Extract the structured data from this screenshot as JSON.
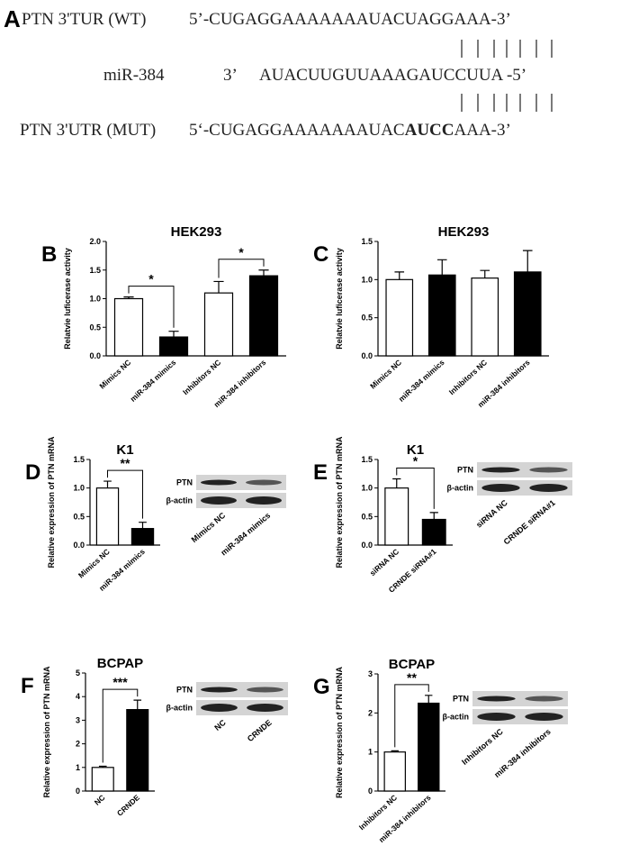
{
  "sequence_panel": {
    "label": "A",
    "wt": {
      "name": "PTN 3'TUR (WT)",
      "sequence": "5’-CUGAGGAAAAAAAUACUAGGAAA-3’"
    },
    "mirna": {
      "name": "miR-384",
      "end": "3’",
      "sequence": "AUACUUGUUAAAGAUCCUUA -5’"
    },
    "mut": {
      "name": "PTN 3'UTR (MUT)",
      "sequence_parts": [
        "5‘-CUGAGGAAAAAAAUAC",
        "AUCC",
        "AAA-3’"
      ]
    }
  },
  "chart_data": [
    {
      "type": "bar",
      "panel": "B",
      "title": "HEK293",
      "y_label": "Relatvie luficerase activity",
      "categories": [
        "Mimics NC",
        "miR-384 mimics",
        "Inhibitors NC",
        "miR-384 inhibitors"
      ],
      "values": [
        1.0,
        0.33,
        1.1,
        1.4
      ],
      "errors": [
        0.03,
        0.1,
        0.2,
        0.1
      ],
      "colors": [
        "#ffffff",
        "#000000",
        "#ffffff",
        "#000000"
      ],
      "ylim": [
        0,
        2
      ],
      "yticks": [
        {
          "value": 0,
          "label": "0.0"
        },
        {
          "value": 0.5,
          "label": "0.5"
        },
        {
          "value": 1,
          "label": "1.0"
        },
        {
          "value": 1.5,
          "label": "1.5"
        },
        {
          "value": 2,
          "label": "2.0"
        }
      ],
      "annotations": [
        {
          "text": "*",
          "between": [
            0,
            1
          ]
        },
        {
          "text": "*",
          "between": [
            2,
            3
          ]
        }
      ]
    },
    {
      "type": "bar",
      "panel": "C",
      "title": "HEK293",
      "y_label": "Relatvie luficerase activity",
      "categories": [
        "Mimics NC",
        "miR-384 mimics",
        "Inhibitors NC",
        "miR-384 inhibitors"
      ],
      "values": [
        1.0,
        1.06,
        1.02,
        1.1
      ],
      "errors": [
        0.1,
        0.2,
        0.1,
        0.28
      ],
      "colors": [
        "#ffffff",
        "#000000",
        "#ffffff",
        "#000000"
      ],
      "ylim": [
        0,
        1.5
      ],
      "yticks": [
        {
          "value": 0,
          "label": "0.0"
        },
        {
          "value": 0.5,
          "label": "0.5"
        },
        {
          "value": 1,
          "label": "1.0"
        },
        {
          "value": 1.5,
          "label": "1.5"
        }
      ]
    },
    {
      "type": "bar",
      "panel": "D",
      "title": "K1",
      "y_label": "Relative expression of PTN mRNA",
      "categories": [
        "Mimics NC",
        "miR-384 mimics"
      ],
      "values": [
        1.0,
        0.29
      ],
      "errors": [
        0.12,
        0.11
      ],
      "colors": [
        "#ffffff",
        "#000000"
      ],
      "ylim": [
        0,
        1.5
      ],
      "yticks": [
        {
          "value": 0,
          "label": "0.0"
        },
        {
          "value": 0.5,
          "label": "0.5"
        },
        {
          "value": 1,
          "label": "1.0"
        },
        {
          "value": 1.5,
          "label": "1.5"
        }
      ],
      "annotations": [
        {
          "text": "**",
          "between": [
            0,
            1
          ]
        }
      ],
      "blot": {
        "rows": [
          "PTN",
          "β-actin"
        ],
        "lanes": [
          "Mimics NC",
          "miR-384 mimics"
        ]
      }
    },
    {
      "type": "bar",
      "panel": "E",
      "title": "K1",
      "y_label": "Relative expression of PTN mRNA",
      "categories": [
        "siRNA NC",
        "CRNDE siRNA#1"
      ],
      "values": [
        1.0,
        0.45
      ],
      "errors": [
        0.16,
        0.12
      ],
      "colors": [
        "#ffffff",
        "#000000"
      ],
      "ylim": [
        0,
        1.5
      ],
      "yticks": [
        {
          "value": 0,
          "label": "0.0"
        },
        {
          "value": 0.5,
          "label": "0.5"
        },
        {
          "value": 1,
          "label": "1.0"
        },
        {
          "value": 1.5,
          "label": "1.5"
        }
      ],
      "annotations": [
        {
          "text": "*",
          "between": [
            0,
            1
          ]
        }
      ],
      "blot": {
        "rows": [
          "PTN",
          "β-actin"
        ],
        "lanes": [
          "siRNA NC",
          "CRNDE siRNA#1"
        ]
      }
    },
    {
      "type": "bar",
      "panel": "F",
      "title": "BCPAP",
      "y_label": "Relative expression of PTN mRNA",
      "categories": [
        "NC",
        "CRNDE"
      ],
      "values": [
        1.0,
        3.45
      ],
      "errors": [
        0.05,
        0.4
      ],
      "colors": [
        "#ffffff",
        "#000000"
      ],
      "ylim": [
        0,
        5
      ],
      "yticks": [
        0,
        1,
        2,
        3,
        4,
        5
      ],
      "annotations": [
        {
          "text": "***",
          "between": [
            0,
            1
          ]
        }
      ],
      "blot": {
        "rows": [
          "PTN",
          "β-actin"
        ],
        "lanes": [
          "NC",
          "CRNDE"
        ]
      }
    },
    {
      "type": "bar",
      "panel": "G",
      "title": "BCPAP",
      "y_label": "Relative expression of PTN mRNA",
      "categories": [
        "Inhibitors NC",
        "miR-384 inhibitors"
      ],
      "values": [
        1.0,
        2.25
      ],
      "errors": [
        0.03,
        0.2
      ],
      "colors": [
        "#ffffff",
        "#000000"
      ],
      "ylim": [
        0,
        3
      ],
      "yticks": [
        0,
        1,
        2,
        3
      ],
      "annotations": [
        {
          "text": "**",
          "between": [
            0,
            1
          ]
        }
      ],
      "blot": {
        "rows": [
          "PTN",
          "β-actin"
        ],
        "lanes": [
          "Inhibitors NC",
          "miR-384 inhibitors"
        ]
      }
    }
  ]
}
